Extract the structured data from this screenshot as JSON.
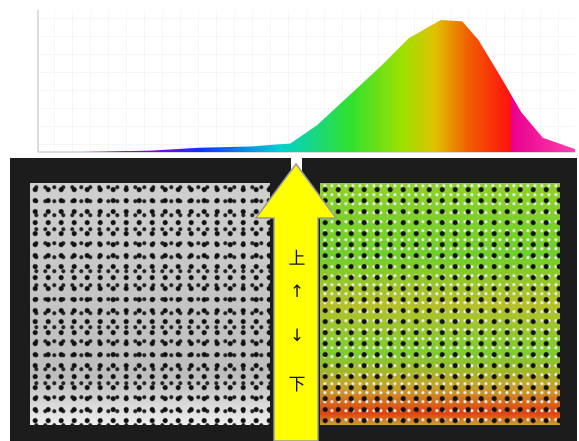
{
  "chart_data": {
    "type": "area",
    "x": [
      0,
      8,
      21,
      30,
      40,
      47,
      52,
      58,
      64,
      69,
      75,
      79,
      82,
      86,
      90,
      94,
      100
    ],
    "values": [
      0,
      0,
      1,
      3,
      4,
      6,
      19,
      40,
      61,
      80,
      93,
      92,
      79,
      54,
      28,
      10,
      2
    ],
    "xlim": [
      0,
      100
    ],
    "ylim": [
      0,
      100
    ],
    "grid": true
  },
  "arrow_labels": [
    "上",
    "↑",
    "↓",
    "下"
  ]
}
